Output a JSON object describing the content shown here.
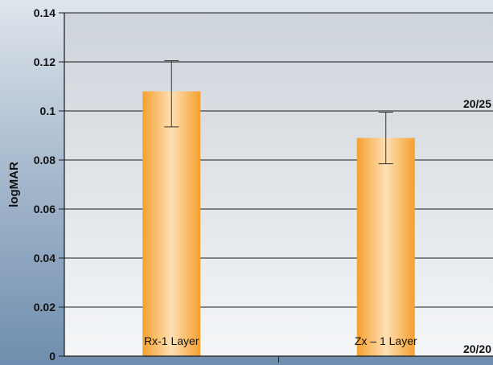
{
  "chart_data": {
    "type": "bar",
    "title": "",
    "xlabel": "",
    "ylabel": "logMAR",
    "ylim": [
      0,
      0.14
    ],
    "yticks": [
      0,
      0.02,
      0.04,
      0.06,
      0.08,
      0.1,
      0.12,
      0.14
    ],
    "ytick_labels": [
      "0",
      "0.02",
      "0.04",
      "0.06",
      "0.08",
      "0.1",
      "0.12",
      "0.14"
    ],
    "grid": true,
    "categories": [
      "Rx-1 Layer",
      "Zx – 1 Layer"
    ],
    "values": [
      0.108,
      0.089
    ],
    "error_bars": [
      {
        "low": 0.0935,
        "high": 0.1205
      },
      {
        "low": 0.0785,
        "high": 0.0995
      }
    ],
    "reference_lines": [
      {
        "label": "20/25",
        "value": 0.1
      },
      {
        "label": "20/20",
        "value": 0
      }
    ],
    "colors": {
      "bar_edge": "#f5a02e",
      "bar_center": "#fde0b4",
      "plot_top": "#cdd4da",
      "plot_bottom": "#f4f6f8",
      "side_panel": "#7f9bb9",
      "grid": "#1a1a1a"
    }
  }
}
